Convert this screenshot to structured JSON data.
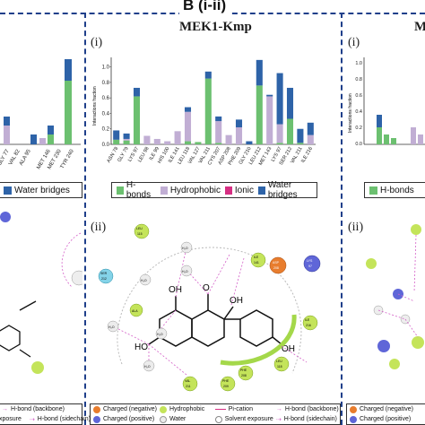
{
  "header": {
    "label": "B (i-ii)"
  },
  "center": {
    "title": "MEK1-Kmp",
    "sub_i": "(i)",
    "sub_ii": "(ii)",
    "legend": [
      {
        "label": "H-bonds",
        "color": "#6cc070"
      },
      {
        "label": "Hydrophobic",
        "color": "#c1aed4"
      },
      {
        "label": "Ionic",
        "color": "#d62f83"
      },
      {
        "label": "Water bridges",
        "color": "#2e63a8"
      }
    ],
    "bottom_legend": {
      "charged_negative": "Charged (negative)",
      "charged_positive": "Charged (positive)",
      "hydrophobic": "Hydrophobic",
      "water": "Water",
      "pi_cation": "Pi-cation",
      "solvent_exposure": "Solvent exposure",
      "hbond_backbone": "H-bond (backbone)",
      "hbond_sidechain": "H-bond (sidechain)"
    },
    "residues": {
      "leu": "LEU",
      "ser": "SER",
      "val": "VAL",
      "phe": "PHE",
      "lys": "LYS",
      "asp": "ASP",
      "ile": "ILE",
      "ala": "ALA",
      "n115": "115",
      "n212": "212",
      "n211": "211",
      "n209": "209",
      "n208": "208",
      "n97": "97",
      "n118": "118",
      "n216": "216",
      "n141": "141"
    },
    "water_label": "H₂O",
    "atoms": {
      "o": "O",
      "oh": "OH",
      "ho": "HO"
    }
  },
  "left": {
    "legend_label": "Water bridges",
    "legend_color": "#2e63a8",
    "labels": [
      "H-bond (backbone)",
      "H-bond (sidechain)"
    ],
    "exposure": "xposure",
    "ticks": [
      "GLY 77",
      "VAL 82",
      "ALA 95",
      "MET 146",
      "MET 230",
      "TYR 240"
    ]
  },
  "right": {
    "title": "M",
    "sub_i": "(i)",
    "sub_ii": "(ii)",
    "ylabel": "Interactions fraction",
    "legend_label": "H-bonds",
    "legend_color": "#6cc070",
    "y_ticks": [
      "1.0",
      "0.8",
      "0.6",
      "0.4",
      "0.2",
      "0.0"
    ]
  },
  "chart_data": {
    "type": "bar",
    "title": "MEK1-Kmp",
    "ylabel": "Interactions fraction",
    "ylim": [
      0,
      1.1
    ],
    "y_ticks": [
      "0.0",
      "0.2",
      "0.4",
      "0.6",
      "0.8",
      "1.0"
    ],
    "categories": [
      "ASN 78",
      "GLY 79",
      "LYS 97",
      "LEU 98",
      "ILE 99",
      "HIS 100",
      "ILE 141",
      "LEU 118",
      "VAL 127",
      "VAL 211",
      "CYS 207",
      "ASP 208",
      "PHE 209",
      "GLY 210",
      "LEU 212",
      "MET 143",
      "LYS 97",
      "SER 212",
      "VAL 211",
      "ILE 216"
    ],
    "series": [
      {
        "name": "H-bonds",
        "color": "#6cc070",
        "values": [
          0.06,
          0.05,
          0.62,
          0,
          0,
          0,
          0,
          0.04,
          0.03,
          0.85,
          0.02,
          0,
          0,
          0,
          0.76,
          0,
          0.02,
          0.33,
          0.02,
          0.0
        ]
      },
      {
        "name": "Hydrophobic",
        "color": "#c1aed4",
        "values": [
          0.0,
          0.02,
          0.0,
          0.11,
          0.07,
          0.04,
          0.17,
          0.38,
          0.0,
          0.0,
          0.28,
          0.12,
          0.22,
          0.0,
          0.0,
          0.62,
          0.24,
          0.0,
          0.0,
          0.12
        ]
      },
      {
        "name": "Ionic",
        "color": "#d62f83",
        "values": [
          0,
          0,
          0,
          0,
          0,
          0,
          0,
          0,
          0,
          0,
          0,
          0,
          0,
          0,
          0,
          0,
          0,
          0,
          0,
          0
        ]
      },
      {
        "name": "Water bridges",
        "color": "#2e63a8",
        "values": [
          0.12,
          0.07,
          0.11,
          0,
          0,
          0,
          0,
          0.06,
          0,
          0.09,
          0.06,
          0,
          0.1,
          0.04,
          0.33,
          0.02,
          0.66,
          0.4,
          0.18,
          0.16
        ]
      }
    ]
  }
}
